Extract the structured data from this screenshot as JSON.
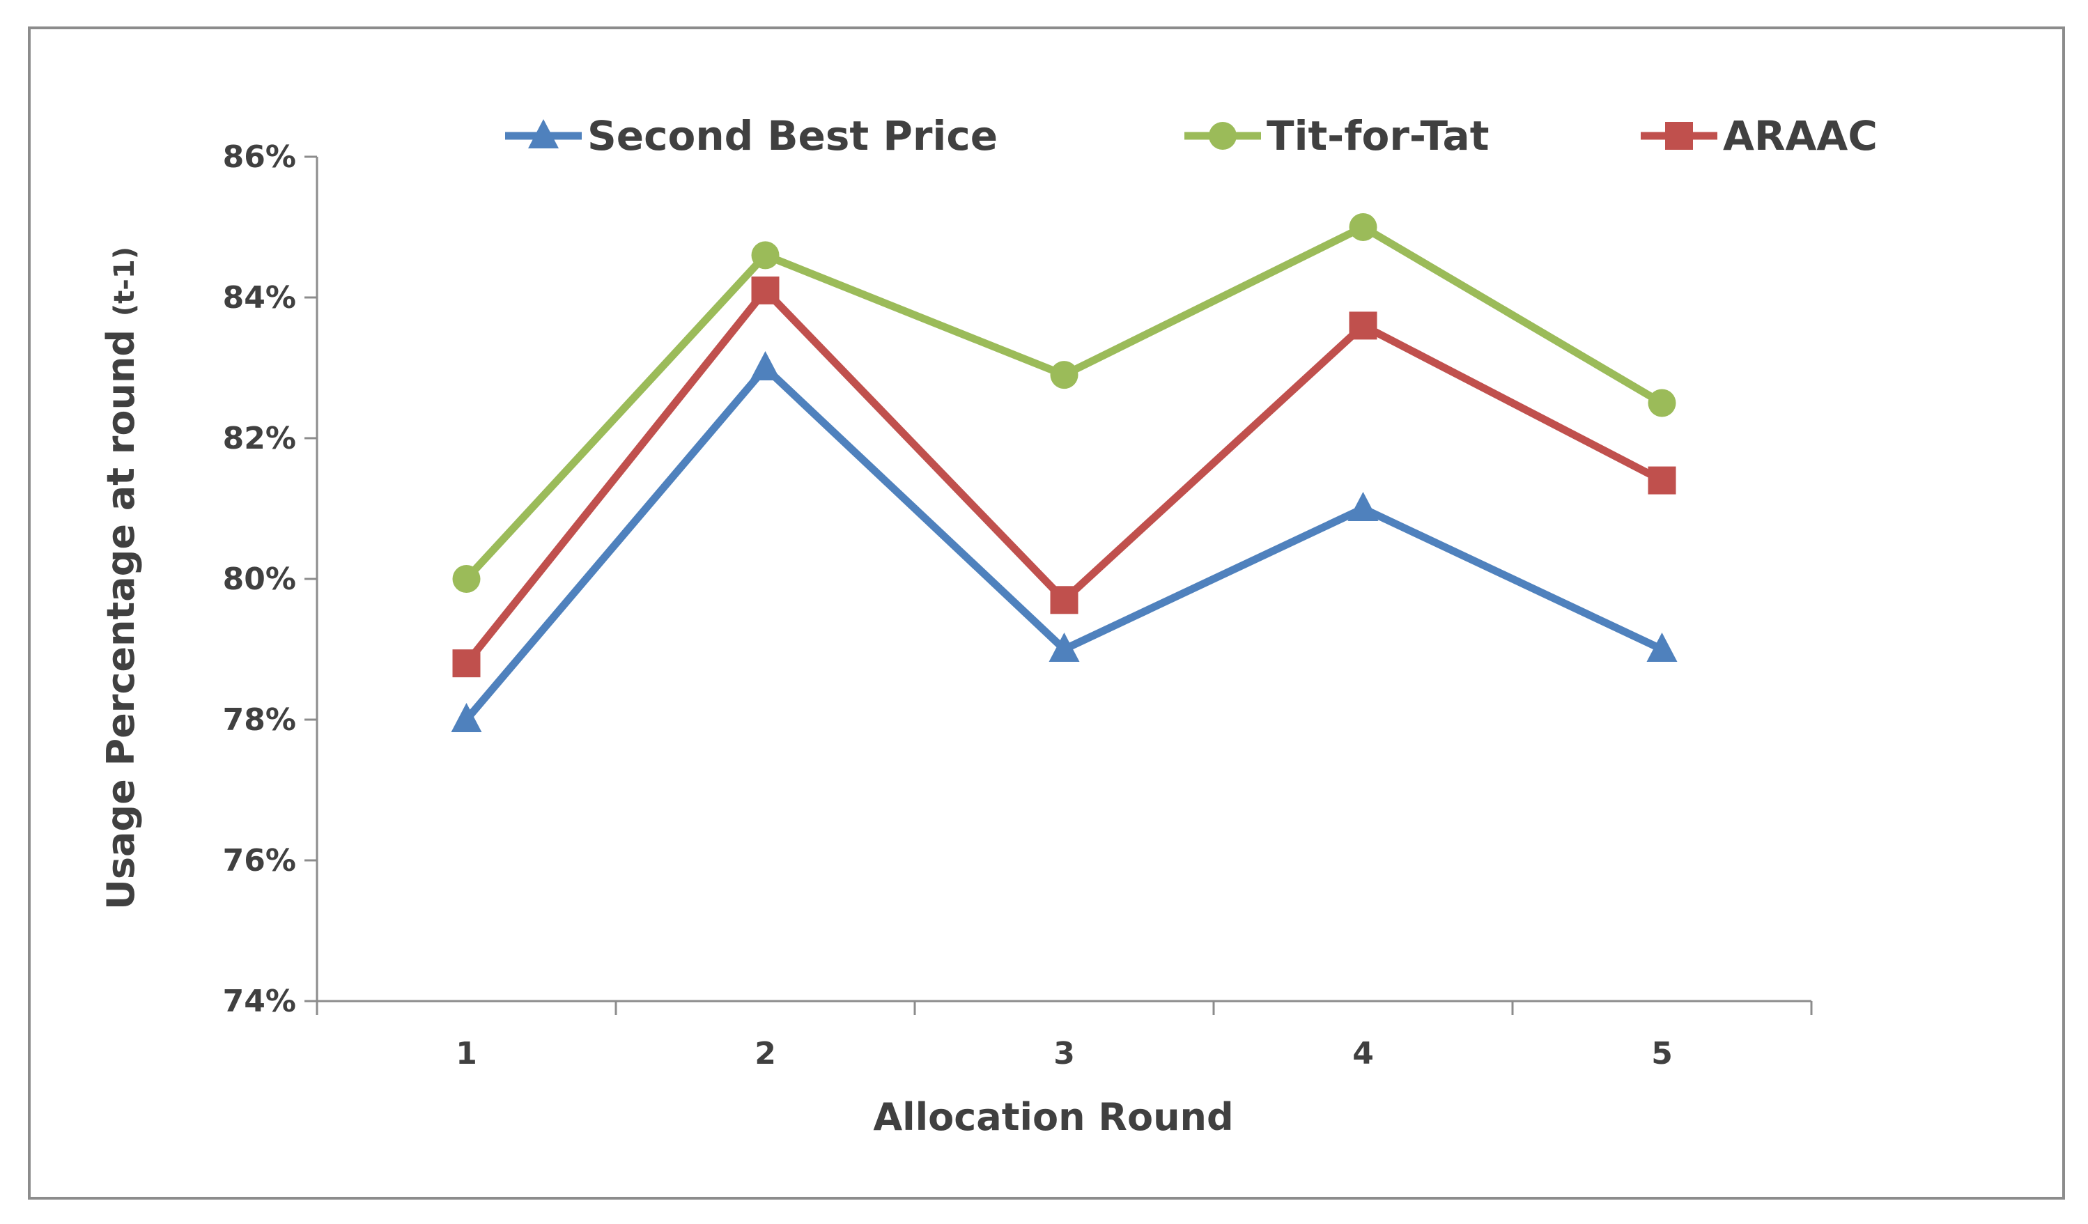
{
  "chart_data": {
    "type": "line",
    "title": "",
    "xlabel": "Allocation Round",
    "ylabel_main": "Usage Percentage at round ",
    "ylabel_suffix": "(t-1)",
    "x": [
      1,
      2,
      3,
      4,
      5
    ],
    "x_tick_labels": [
      "1",
      "2",
      "3",
      "4",
      "5"
    ],
    "ylim": [
      74,
      86
    ],
    "y_ticks": [
      74,
      76,
      78,
      80,
      82,
      84,
      86
    ],
    "y_tick_labels": [
      "74%",
      "76%",
      "78%",
      "80%",
      "82%",
      "84%",
      "86%"
    ],
    "grid": false,
    "legend_position": "top",
    "series": [
      {
        "name": "Second Best Price",
        "marker": "triangle",
        "color": "#4f81bd",
        "values": [
          78.0,
          83.0,
          79.0,
          81.0,
          79.0
        ]
      },
      {
        "name": "Tit-for-Tat",
        "marker": "circle",
        "color": "#9bbb59",
        "values": [
          80.0,
          84.6,
          82.9,
          85.0,
          82.5
        ]
      },
      {
        "name": "ARAAC",
        "marker": "square",
        "color": "#c0504d",
        "values": [
          78.8,
          84.1,
          79.7,
          83.6,
          81.4
        ]
      }
    ]
  }
}
